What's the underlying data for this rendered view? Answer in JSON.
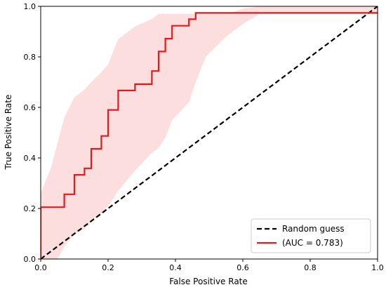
{
  "chart_data": {
    "type": "line",
    "xlabel": "False Positive Rate",
    "ylabel": "True Positive Rate",
    "xlim": [
      0,
      1
    ],
    "ylim": [
      0,
      1
    ],
    "xticks": [
      "0.0",
      "0.2",
      "0.4",
      "0.6",
      "0.8",
      "1.0"
    ],
    "yticks": [
      "0.0",
      "0.2",
      "0.4",
      "0.6",
      "0.8",
      "1.0"
    ],
    "grid": false,
    "legend_position": "bottom-right",
    "colors": {
      "roc": "#e41a1c",
      "band": "#fbd3d3",
      "baseline": "#000000"
    },
    "series": [
      {
        "name": "Random guess",
        "style": "dashed",
        "x": [
          0,
          1
        ],
        "y": [
          0,
          1
        ]
      },
      {
        "name": "(AUC = 0.783)",
        "style": "step",
        "x": [
          0.0,
          0.0,
          0.07,
          0.07,
          0.1,
          0.1,
          0.13,
          0.13,
          0.15,
          0.15,
          0.18,
          0.18,
          0.2,
          0.2,
          0.23,
          0.23,
          0.28,
          0.28,
          0.33,
          0.33,
          0.35,
          0.35,
          0.37,
          0.37,
          0.39,
          0.39,
          0.44,
          0.44,
          0.46,
          0.46,
          0.49,
          0.49,
          1.0
        ],
        "y": [
          0.0,
          0.205,
          0.205,
          0.256,
          0.256,
          0.333,
          0.333,
          0.359,
          0.359,
          0.436,
          0.436,
          0.487,
          0.487,
          0.59,
          0.59,
          0.667,
          0.667,
          0.692,
          0.692,
          0.744,
          0.744,
          0.821,
          0.821,
          0.872,
          0.872,
          0.923,
          0.923,
          0.949,
          0.949,
          0.974,
          0.974,
          0.974,
          0.974
        ]
      }
    ],
    "confidence_band": {
      "x": [
        0.0,
        0.03,
        0.05,
        0.07,
        0.1,
        0.13,
        0.15,
        0.18,
        0.2,
        0.23,
        0.28,
        0.33,
        0.35,
        0.37,
        0.39,
        0.44,
        0.46,
        0.49,
        0.55,
        0.6,
        0.65,
        1.0
      ],
      "upper": [
        0.26,
        0.36,
        0.46,
        0.56,
        0.64,
        0.67,
        0.7,
        0.74,
        0.77,
        0.87,
        0.92,
        0.95,
        0.97,
        0.97,
        0.97,
        0.97,
        0.97,
        0.97,
        0.97,
        0.99,
        1.0,
        1.0
      ],
      "lower": [
        0.0,
        0.0,
        0.0,
        0.05,
        0.1,
        0.12,
        0.15,
        0.18,
        0.21,
        0.27,
        0.35,
        0.42,
        0.44,
        0.48,
        0.55,
        0.62,
        0.7,
        0.8,
        0.88,
        0.93,
        0.97,
        0.97
      ]
    }
  }
}
